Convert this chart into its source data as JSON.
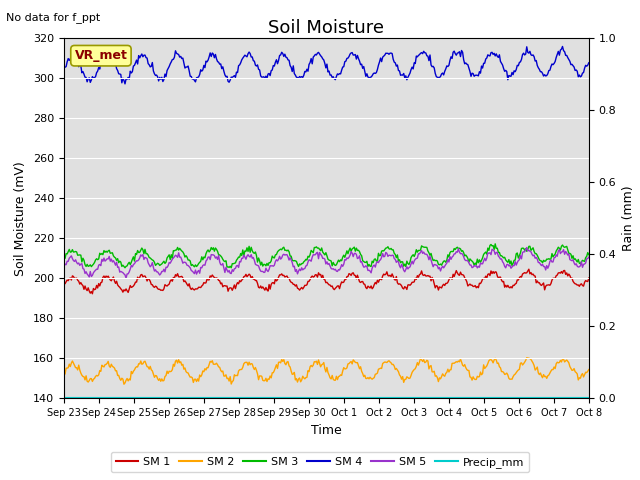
{
  "title": "Soil Moisture",
  "xlabel": "Time",
  "ylabel_left": "Soil Moisture (mV)",
  "ylabel_right": "Rain (mm)",
  "no_data_text": "No data for f_ppt",
  "vr_met_label": "VR_met",
  "ylim_left": [
    140,
    320
  ],
  "ylim_right": [
    0.0,
    1.0
  ],
  "yticks_left": [
    140,
    160,
    180,
    200,
    220,
    240,
    260,
    280,
    300,
    320
  ],
  "yticks_right": [
    0.0,
    0.2,
    0.4,
    0.6,
    0.8,
    1.0
  ],
  "background_color": "#e0e0e0",
  "series": {
    "SM1": {
      "color": "#cc0000",
      "base": 197,
      "amplitude": 3.5,
      "freq": 1.0,
      "trend": 3
    },
    "SM2": {
      "color": "#ffa500",
      "base": 153,
      "amplitude": 4.5,
      "freq": 1.0,
      "trend": 2
    },
    "SM3": {
      "color": "#00bb00",
      "base": 210,
      "amplitude": 4.0,
      "freq": 1.0,
      "trend": 2
    },
    "SM4": {
      "color": "#0000cc",
      "base": 305,
      "amplitude": 6.0,
      "freq": 1.0,
      "trend": 3
    },
    "SM5": {
      "color": "#9933cc",
      "base": 206,
      "amplitude": 4.0,
      "freq": 1.0,
      "trend": 4
    },
    "Precip_mm": {
      "color": "#00cccc",
      "base": 140.5,
      "amplitude": 0,
      "freq": 0,
      "trend": 0
    }
  },
  "legend_labels": [
    "SM 1",
    "SM 2",
    "SM 3",
    "SM 4",
    "SM 5",
    "Precip_mm"
  ],
  "legend_colors": [
    "#cc0000",
    "#ffa500",
    "#00bb00",
    "#0000cc",
    "#9933cc",
    "#00cccc"
  ],
  "xtick_labels": [
    "Sep 23",
    "Sep 24",
    "Sep 25",
    "Sep 26",
    "Sep 27",
    "Sep 28",
    "Sep 29",
    "Sep 30",
    "Oct 1",
    "Oct 2",
    "Oct 3",
    "Oct 4",
    "Oct 5",
    "Oct 6",
    "Oct 7",
    "Oct 8"
  ],
  "grid_color": "#ffffff",
  "fig_bg_color": "#ffffff",
  "title_fontsize": 13,
  "label_fontsize": 9,
  "tick_fontsize": 8,
  "n_days": 15,
  "n_points": 500
}
